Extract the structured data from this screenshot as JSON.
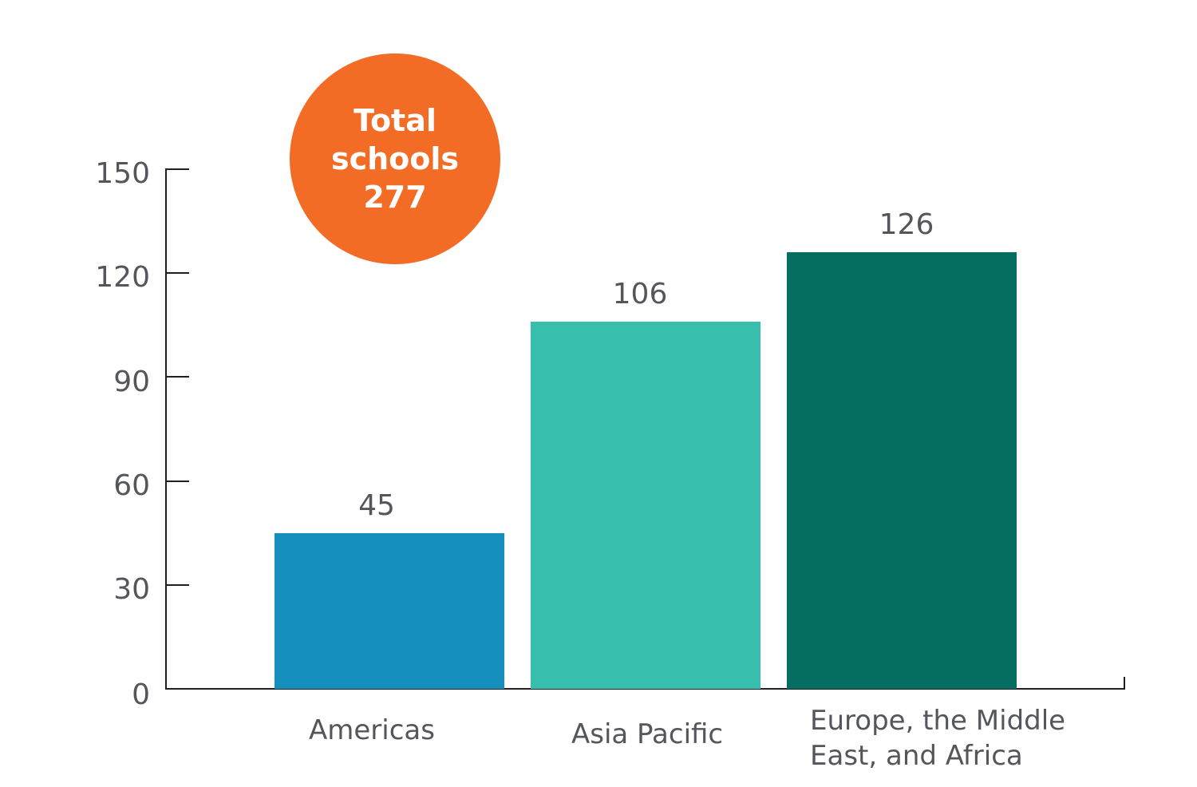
{
  "chart_data": {
    "type": "bar",
    "title": "",
    "xlabel": "",
    "ylabel": "",
    "categories": [
      "Americas",
      "Asia Pacific",
      "Europe, the Middle East, and Africa"
    ],
    "values": [
      45,
      106,
      126
    ],
    "colors": [
      "#168fbf",
      "#38bead",
      "#066e61"
    ],
    "data_labels": [
      "45",
      "106",
      "126"
    ],
    "ylim": [
      0,
      150
    ],
    "yticks": [
      0,
      30,
      60,
      90,
      120,
      150
    ],
    "grid": false,
    "legend": null,
    "annotation": {
      "text_lines": [
        "Total",
        "schools",
        "277"
      ],
      "total": 277,
      "shape": "circle",
      "color": "#f26c26"
    }
  },
  "axis": {
    "yticks": [
      "0",
      "30",
      "60",
      "90",
      "120",
      "150"
    ]
  },
  "bars": [
    {
      "category": "Americas",
      "value_label": "45",
      "value": 45,
      "color": "#168fbf"
    },
    {
      "category": "Asia Pacific",
      "value_label": "106",
      "value": 106,
      "color": "#38bead"
    },
    {
      "category_line1": "Europe, the Middle",
      "category_line2": "East, and Africa",
      "value_label": "126",
      "value": 126,
      "color": "#066e61"
    }
  ],
  "badge": {
    "line1": "Total",
    "line2": "schools",
    "line3": "277",
    "color": "#f26c26"
  }
}
